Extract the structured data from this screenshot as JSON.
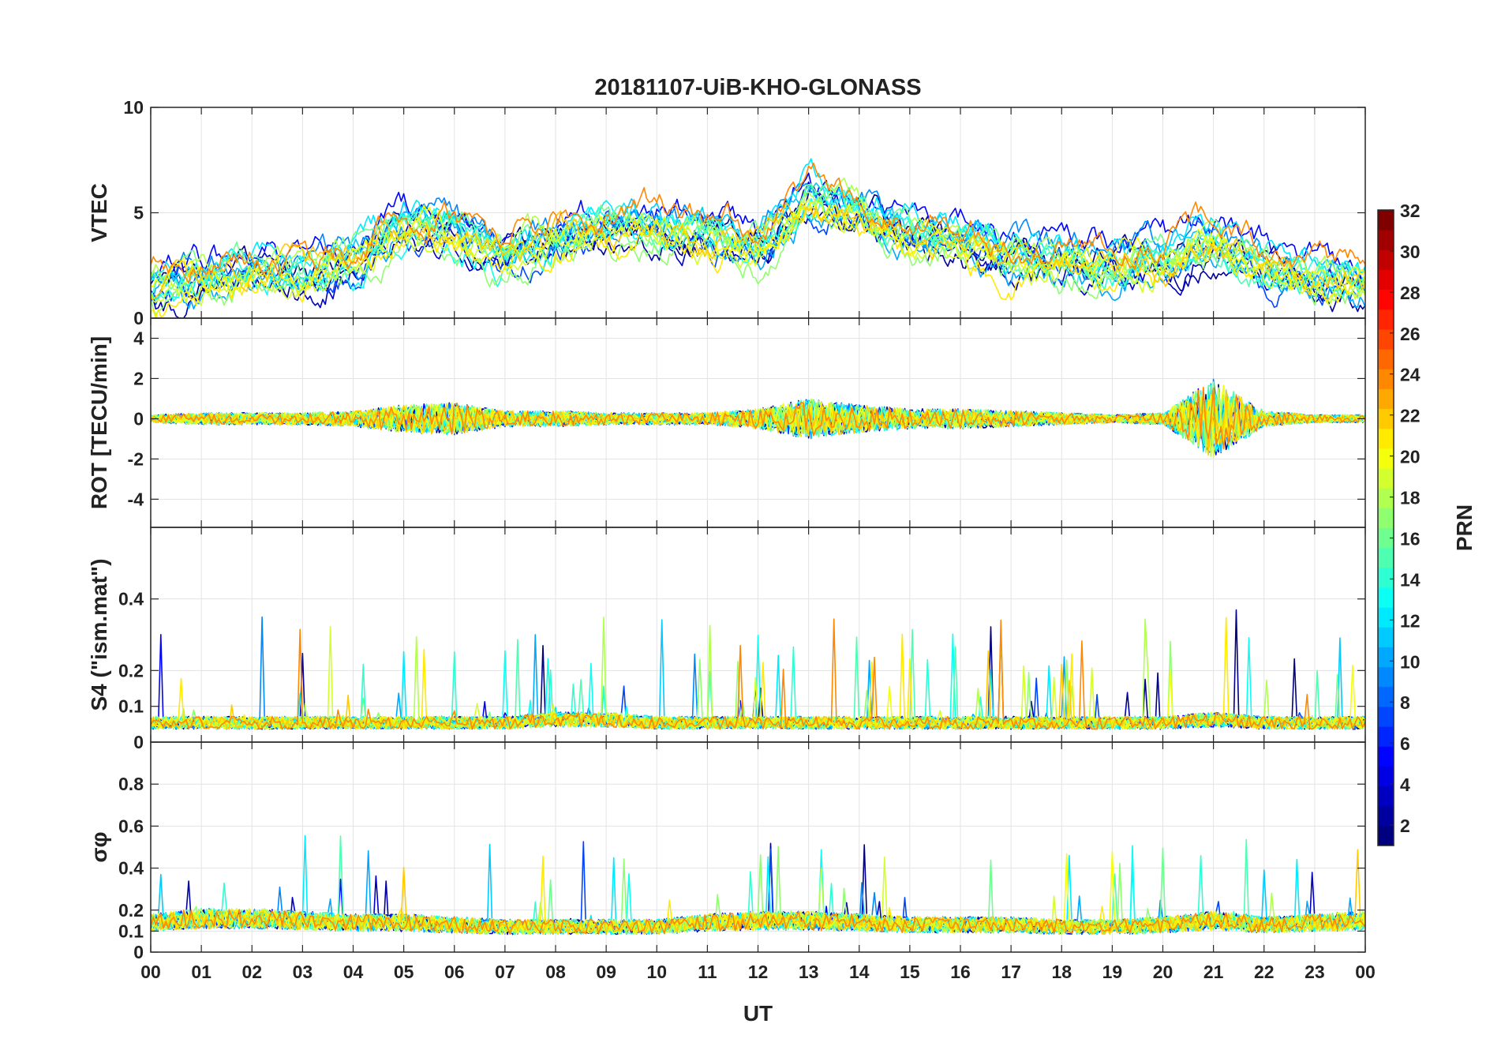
{
  "chart_data": {
    "type": "line",
    "title": "20181107-UiB-KHO-GLONASS",
    "xlabel": "UT",
    "x_ticks": [
      "00",
      "01",
      "02",
      "03",
      "04",
      "05",
      "06",
      "07",
      "08",
      "09",
      "10",
      "11",
      "12",
      "13",
      "14",
      "15",
      "16",
      "17",
      "18",
      "19",
      "20",
      "21",
      "22",
      "23",
      "00"
    ],
    "xlim_hours": [
      0,
      24
    ],
    "panels": [
      {
        "id": "vtec",
        "ylabel": "VTEC",
        "ylim": [
          0,
          10
        ],
        "y_ticks": [
          0,
          5,
          10
        ],
        "y_tick_labels": [
          "0",
          "5",
          "10"
        ],
        "activity": [
          1.5,
          1.8,
          2.5,
          2.2,
          2.8,
          4.5,
          4.2,
          3.0,
          4.0,
          4.3,
          4.5,
          4.0,
          3.5,
          5.8,
          5.2,
          4.0,
          3.8,
          3.0,
          2.8,
          2.6,
          2.8,
          3.8,
          2.6,
          2.0,
          1.8
        ]
      },
      {
        "id": "rot",
        "ylabel": "ROT [TECU/min]",
        "ylim": [
          -5.4,
          5.0
        ],
        "y_ticks": [
          -4,
          -2,
          0,
          2,
          4
        ],
        "y_tick_labels": [
          "-4",
          "-2",
          "0",
          "2",
          "4"
        ],
        "activity": [
          0.2,
          0.3,
          0.3,
          0.3,
          0.4,
          0.7,
          0.8,
          0.4,
          0.4,
          0.3,
          0.3,
          0.3,
          0.5,
          1.0,
          0.7,
          0.5,
          0.5,
          0.4,
          0.3,
          0.2,
          0.3,
          2.0,
          0.4,
          0.2,
          0.2
        ]
      },
      {
        "id": "s4",
        "ylabel": "S4 (\"ism.mat\")",
        "ylim": [
          0,
          0.6
        ],
        "y_ticks": [
          0,
          0.1,
          0.2,
          0.4
        ],
        "y_tick_labels": [
          "0",
          "0.1",
          "0.2",
          "0.4"
        ],
        "activity": [
          0.06,
          0.06,
          0.06,
          0.06,
          0.06,
          0.06,
          0.06,
          0.06,
          0.07,
          0.07,
          0.06,
          0.06,
          0.06,
          0.06,
          0.06,
          0.06,
          0.06,
          0.06,
          0.06,
          0.06,
          0.06,
          0.07,
          0.06,
          0.06,
          0.06
        ]
      },
      {
        "id": "sigphi",
        "ylabel": "σφ",
        "ylim": [
          0,
          1.0
        ],
        "y_ticks": [
          0,
          0.1,
          0.2,
          0.4,
          0.6,
          0.8
        ],
        "y_tick_labels": [
          "0",
          "0.1",
          "0.2",
          "0.4",
          "0.6",
          "0.8"
        ],
        "activity": [
          0.14,
          0.16,
          0.16,
          0.15,
          0.14,
          0.14,
          0.13,
          0.12,
          0.12,
          0.12,
          0.12,
          0.14,
          0.15,
          0.15,
          0.14,
          0.13,
          0.13,
          0.13,
          0.12,
          0.12,
          0.13,
          0.15,
          0.13,
          0.14,
          0.15
        ]
      }
    ],
    "colorbar": {
      "label": "PRN",
      "range": [
        1,
        32
      ],
      "ticks": [
        2,
        4,
        6,
        8,
        10,
        12,
        14,
        16,
        18,
        20,
        22,
        24,
        26,
        28,
        30,
        32
      ],
      "tick_labels": [
        "2",
        "4",
        "6",
        "8",
        "10",
        "12",
        "14",
        "16",
        "18",
        "20",
        "22",
        "24",
        "26",
        "28",
        "30",
        "32"
      ],
      "colormap": "jet"
    },
    "series_prn": [
      1,
      2,
      3,
      5,
      7,
      9,
      10,
      11,
      12,
      13,
      14,
      15,
      16,
      17,
      18,
      19,
      20,
      21,
      22,
      24
    ]
  }
}
